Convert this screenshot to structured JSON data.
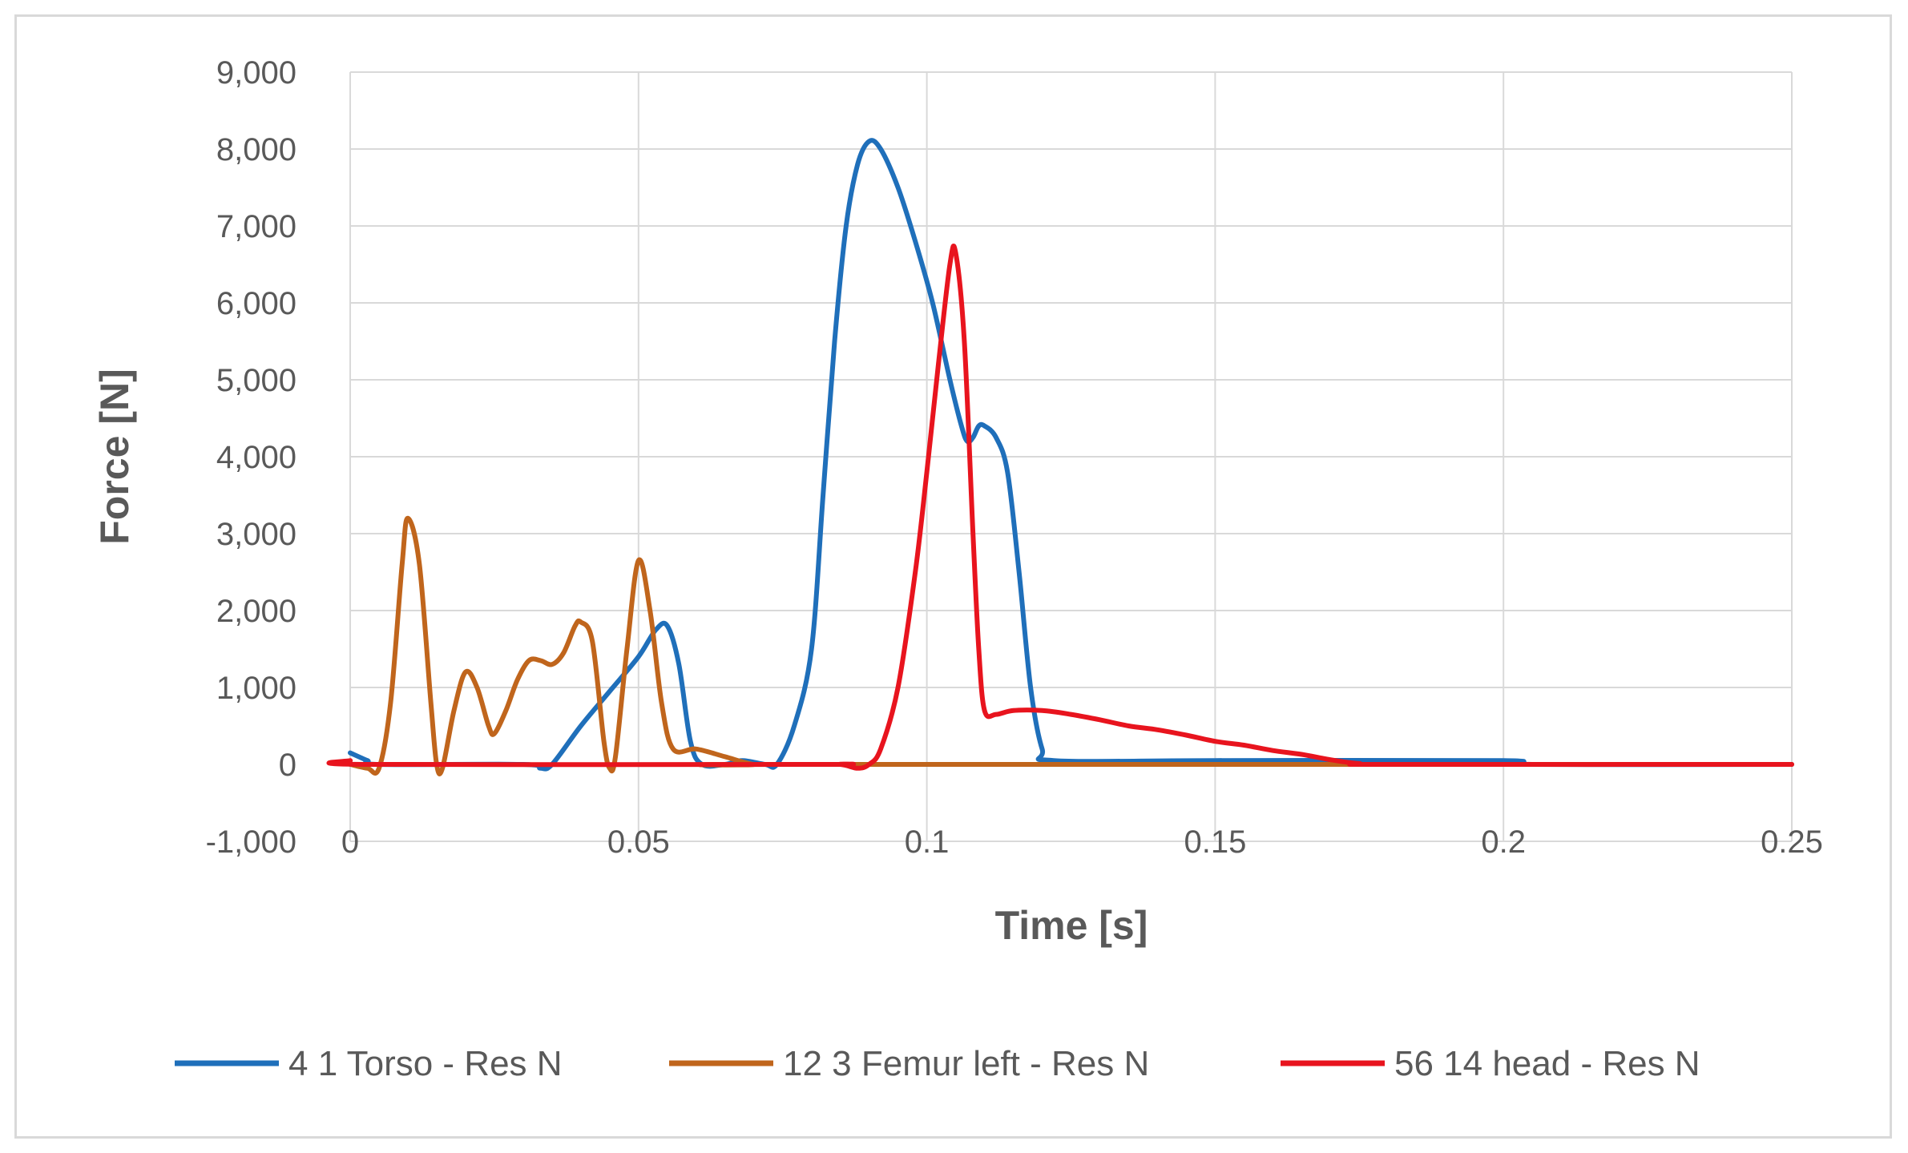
{
  "chart_data": {
    "type": "line",
    "xlabel": "Time [s]",
    "ylabel": "Force [N]",
    "xlim": [
      0,
      0.25
    ],
    "ylim": [
      -1000,
      9000
    ],
    "xticks": [
      0,
      0.05,
      0.1,
      0.15,
      0.2,
      0.25
    ],
    "xtick_labels": [
      "0",
      "0.05",
      "0.1",
      "0.15",
      "0.2",
      "0.25"
    ],
    "yticks": [
      -1000,
      0,
      1000,
      2000,
      3000,
      4000,
      5000,
      6000,
      7000,
      8000,
      9000
    ],
    "ytick_labels": [
      "-1,000",
      "0",
      "1,000",
      "2,000",
      "3,000",
      "4,000",
      "5,000",
      "6,000",
      "7,000",
      "8,000",
      "9,000"
    ],
    "grid": true,
    "legend_position": "bottom",
    "series": [
      {
        "name": "4 1 Torso - Res N",
        "color": "#1f6fba",
        "points": [
          [
            0,
            150
          ],
          [
            0.003,
            50
          ],
          [
            0.005,
            0
          ],
          [
            0.03,
            0
          ],
          [
            0.033,
            -50
          ],
          [
            0.035,
            0
          ],
          [
            0.04,
            500
          ],
          [
            0.045,
            950
          ],
          [
            0.05,
            1400
          ],
          [
            0.053,
            1750
          ],
          [
            0.055,
            1800
          ],
          [
            0.057,
            1300
          ],
          [
            0.059,
            300
          ],
          [
            0.061,
            0
          ],
          [
            0.065,
            0
          ],
          [
            0.068,
            50
          ],
          [
            0.072,
            0
          ],
          [
            0.074,
            0
          ],
          [
            0.077,
            500
          ],
          [
            0.08,
            1500
          ],
          [
            0.082,
            3500
          ],
          [
            0.084,
            5500
          ],
          [
            0.086,
            7000
          ],
          [
            0.088,
            7800
          ],
          [
            0.09,
            8100
          ],
          [
            0.092,
            8000
          ],
          [
            0.095,
            7500
          ],
          [
            0.098,
            6800
          ],
          [
            0.101,
            6000
          ],
          [
            0.104,
            5000
          ],
          [
            0.106,
            4400
          ],
          [
            0.107,
            4200
          ],
          [
            0.108,
            4250
          ],
          [
            0.109,
            4400
          ],
          [
            0.11,
            4400
          ],
          [
            0.112,
            4250
          ],
          [
            0.114,
            3800
          ],
          [
            0.116,
            2500
          ],
          [
            0.118,
            1000
          ],
          [
            0.12,
            200
          ],
          [
            0.122,
            50
          ],
          [
            0.15,
            50
          ],
          [
            0.2,
            50
          ],
          [
            0.205,
            0
          ],
          [
            0.25,
            0
          ]
        ]
      },
      {
        "name": "12 3 Femur left - Res N",
        "color": "#c0651c",
        "points": [
          [
            0,
            0
          ],
          [
            0.003,
            -50
          ],
          [
            0.005,
            -50
          ],
          [
            0.007,
            800
          ],
          [
            0.009,
            2600
          ],
          [
            0.01,
            3200
          ],
          [
            0.012,
            2600
          ],
          [
            0.014,
            800
          ],
          [
            0.015,
            0
          ],
          [
            0.016,
            -50
          ],
          [
            0.018,
            700
          ],
          [
            0.02,
            1200
          ],
          [
            0.022,
            1000
          ],
          [
            0.024,
            500
          ],
          [
            0.025,
            400
          ],
          [
            0.027,
            700
          ],
          [
            0.029,
            1100
          ],
          [
            0.031,
            1350
          ],
          [
            0.033,
            1350
          ],
          [
            0.035,
            1300
          ],
          [
            0.037,
            1450
          ],
          [
            0.039,
            1800
          ],
          [
            0.04,
            1850
          ],
          [
            0.042,
            1600
          ],
          [
            0.044,
            300
          ],
          [
            0.045,
            -50
          ],
          [
            0.046,
            100
          ],
          [
            0.048,
            1500
          ],
          [
            0.05,
            2650
          ],
          [
            0.052,
            2000
          ],
          [
            0.054,
            800
          ],
          [
            0.056,
            200
          ],
          [
            0.06,
            200
          ],
          [
            0.065,
            100
          ],
          [
            0.07,
            0
          ],
          [
            0.075,
            0
          ],
          [
            0.25,
            0
          ]
        ]
      },
      {
        "name": "56 14 head - Res N",
        "color": "#e8141e",
        "points": [
          [
            0,
            50
          ],
          [
            0.003,
            0
          ],
          [
            0.08,
            0
          ],
          [
            0.085,
            0
          ],
          [
            0.088,
            -50
          ],
          [
            0.09,
            0
          ],
          [
            0.092,
            200
          ],
          [
            0.095,
            1000
          ],
          [
            0.098,
            2500
          ],
          [
            0.1,
            3800
          ],
          [
            0.102,
            5200
          ],
          [
            0.104,
            6500
          ],
          [
            0.105,
            6650
          ],
          [
            0.1065,
            5500
          ],
          [
            0.108,
            3000
          ],
          [
            0.109,
            1500
          ],
          [
            0.11,
            700
          ],
          [
            0.112,
            650
          ],
          [
            0.115,
            700
          ],
          [
            0.12,
            700
          ],
          [
            0.125,
            650
          ],
          [
            0.13,
            580
          ],
          [
            0.135,
            500
          ],
          [
            0.14,
            450
          ],
          [
            0.145,
            380
          ],
          [
            0.15,
            300
          ],
          [
            0.155,
            250
          ],
          [
            0.16,
            180
          ],
          [
            0.165,
            130
          ],
          [
            0.17,
            60
          ],
          [
            0.175,
            10
          ],
          [
            0.18,
            0
          ],
          [
            0.25,
            0
          ]
        ]
      }
    ]
  }
}
